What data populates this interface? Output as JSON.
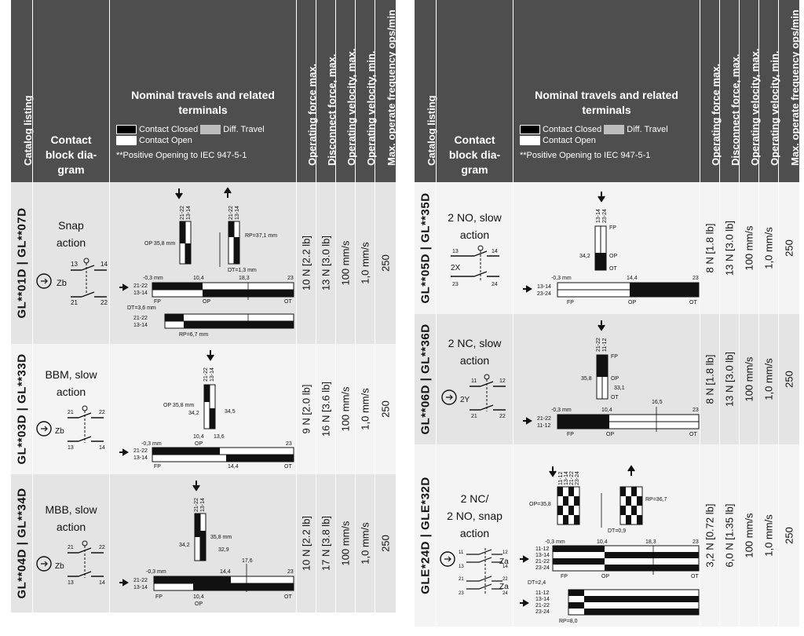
{
  "header": {
    "catalog": "Catalog listing",
    "contact": [
      "Contact",
      "block dia-",
      "gram"
    ],
    "nominal_title": [
      "Nominal travels and related",
      "terminals"
    ],
    "legend_closed": "Contact Closed",
    "legend_diff": "Diff. Travel",
    "legend_open": "Contact Open",
    "iec": "**Positive Opening to IEC 947-5-1",
    "op_force": "Operating force max.",
    "disc_force": "Disconnect force, max.",
    "vel_max": "Operating velocity, max.",
    "vel_min": "Operating velocity, min.",
    "freq": "Max. operate frequency ops/min"
  },
  "left_rows": [
    {
      "catalog_a": "GL**01D",
      "sep": "|",
      "catalog_b": "GL**07D",
      "action": [
        "Snap",
        "action"
      ],
      "sym_term": [
        "13",
        "14",
        "21",
        "22"
      ],
      "sym_label": "Zb",
      "op_force": "10 N [2.2 lb]",
      "disc_force": "13 N [3.0 lb]",
      "vel_max": "100 mm/s",
      "vel_min": "1,0 mm/s",
      "freq": "250",
      "diag": {
        "term_top": [
          "21-22",
          "13-14"
        ],
        "term_top2": [
          "21-22",
          "13-14"
        ],
        "op": "OP 35,8 mm",
        "rp": "RP=37,1 mm",
        "dt": "DT=1,3 mm",
        "ticks": [
          "-0,3 mm",
          "10,4",
          "18,3",
          "23"
        ],
        "bar_lbl": [
          "21-22",
          "13-14"
        ],
        "fp": "FP",
        "opl": "OP",
        "ot": "OT",
        "dt2": "DT=3,6 mm",
        "bar2_lbl": [
          "21-22",
          "13-14"
        ],
        "rp2": "RP=6,7 mm"
      }
    },
    {
      "catalog_a": "GL**03D",
      "sep": "|",
      "catalog_b": "GL**33D",
      "action": [
        "BBM, slow",
        "action"
      ],
      "sym_term": [
        "21",
        "22",
        "13",
        "14"
      ],
      "sym_label": "Zb",
      "op_force": "9 N [2.0 lb]",
      "disc_force": "16 N [3.6 lb]",
      "vel_max": "100 mm/s",
      "vel_min": "1,0 mm/s",
      "freq": "250",
      "diag": {
        "term_top": [
          "21-22",
          "13-14"
        ],
        "op": "OP 35,8 mm",
        "v1": "34,2",
        "v2": "34,5",
        "ticks": [
          "10,4",
          "13,6",
          "-0,3 mm",
          "OP",
          "23"
        ],
        "bar_lbl": [
          "21-22",
          "13-14"
        ],
        "fp": "FP",
        "v3": "14,4",
        "ot": "OT"
      }
    },
    {
      "catalog_a": "GL**04D",
      "sep": "|",
      "catalog_b": "GL**34D",
      "action": [
        "MBB, slow",
        "action"
      ],
      "sym_term": [
        "21",
        "22",
        "13",
        "14"
      ],
      "sym_label": "Zb",
      "op_force": "10 N [2.2 lb]",
      "disc_force": "17 N [3.8 lb]",
      "vel_max": "100 mm/s",
      "vel_min": "1,0 mm/s",
      "freq": "250",
      "diag": {
        "term_top": [
          "21-22",
          "13-14"
        ],
        "v1": "35,8 mm",
        "v2": "34,2",
        "v3": "32,9",
        "ticks": [
          "17,6",
          "-0,3 mm",
          "14,4",
          "23"
        ],
        "bar_lbl": [
          "21-22",
          "13-14"
        ],
        "fp": "FP",
        "b1": "10,4",
        "b2": "OP",
        "ot": "OT"
      }
    }
  ],
  "right_rows": [
    {
      "catalog_a": "GL**05D",
      "sep": "|",
      "catalog_b": "GL**35D",
      "action": [
        "2 NO, slow",
        "action"
      ],
      "sym_term": [
        "13",
        "14",
        "23",
        "24"
      ],
      "sym_label": "2X",
      "op_force": "8 N [1.8 lb]",
      "disc_force": "13 N [3.0 lb]",
      "vel_max": "100 mm/s",
      "vel_min": "1,0 mm/s",
      "freq": "250",
      "diag": {
        "term_top": [
          "13-14",
          "23-24"
        ],
        "fp": "FP",
        "v1": "34,2",
        "opl": "OP",
        "otl": "OT",
        "ticks": [
          "-0,3 mm",
          "14,4",
          "23"
        ],
        "bar_lbl": [
          "13-14",
          "23-24"
        ],
        "fp2": "FP",
        "op2": "OP",
        "ot2": "OT"
      }
    },
    {
      "catalog_a": "GL**06D",
      "sep": "|",
      "catalog_b": "GL**36D",
      "action": [
        "2 NC, slow",
        "action"
      ],
      "sym_term": [
        "11",
        "12",
        "21",
        "22"
      ],
      "sym_label": "2Y",
      "op_force": "8 N [1.8 lb]",
      "disc_force": "13 N [3.0 lb]",
      "vel_max": "100 mm/s",
      "vel_min": "1,0 mm/s",
      "freq": "250",
      "diag": {
        "term_top": [
          "21-22",
          "11-12"
        ],
        "fp": "FP",
        "v1": "35,8",
        "opl": "OP",
        "v2": "33,1",
        "ot": "OT",
        "ticks": [
          "-0,3 mm",
          "10,4",
          "16,5",
          "23"
        ],
        "bar_lbl": [
          "21-22",
          "11-12"
        ],
        "fp2": "FP",
        "op2": "OP",
        "ot2": "OT"
      }
    },
    {
      "catalog_a": "GLE*24D",
      "sep": "|",
      "catalog_b": "GLE*32D",
      "action": [
        "2 NC/",
        "2 NO, snap",
        "action"
      ],
      "sym_term": [
        "11",
        "12",
        "13",
        "14",
        "21",
        "22",
        "23",
        "24"
      ],
      "sym_label": "Za",
      "sym_label2": "Za",
      "op_force": "3,2 N [0.72 lb]",
      "disc_force": "6,0 N [1.35 lb]",
      "vel_max": "100 mm/s",
      "vel_min": "1,0 mm/s",
      "freq": "250",
      "diag": {
        "term_top": [
          "11-12",
          "13-14",
          "21-22",
          "23-24"
        ],
        "op": "OP=35,8",
        "rp": "RP=36,7",
        "dt": "DT=0,9",
        "ticks": [
          "-0,3 mm",
          "10,4",
          "18,3",
          "23"
        ],
        "bar_lbl": [
          "11-12",
          "13-14",
          "21-22",
          "23-24"
        ],
        "fp": "FP",
        "opl": "OP",
        "ot": "OT",
        "dt2": "DT=2,4",
        "bar2_lbl": [
          "11-12",
          "13-14",
          "21-22",
          "23-24"
        ],
        "rp2": "RP=8,0"
      }
    }
  ]
}
